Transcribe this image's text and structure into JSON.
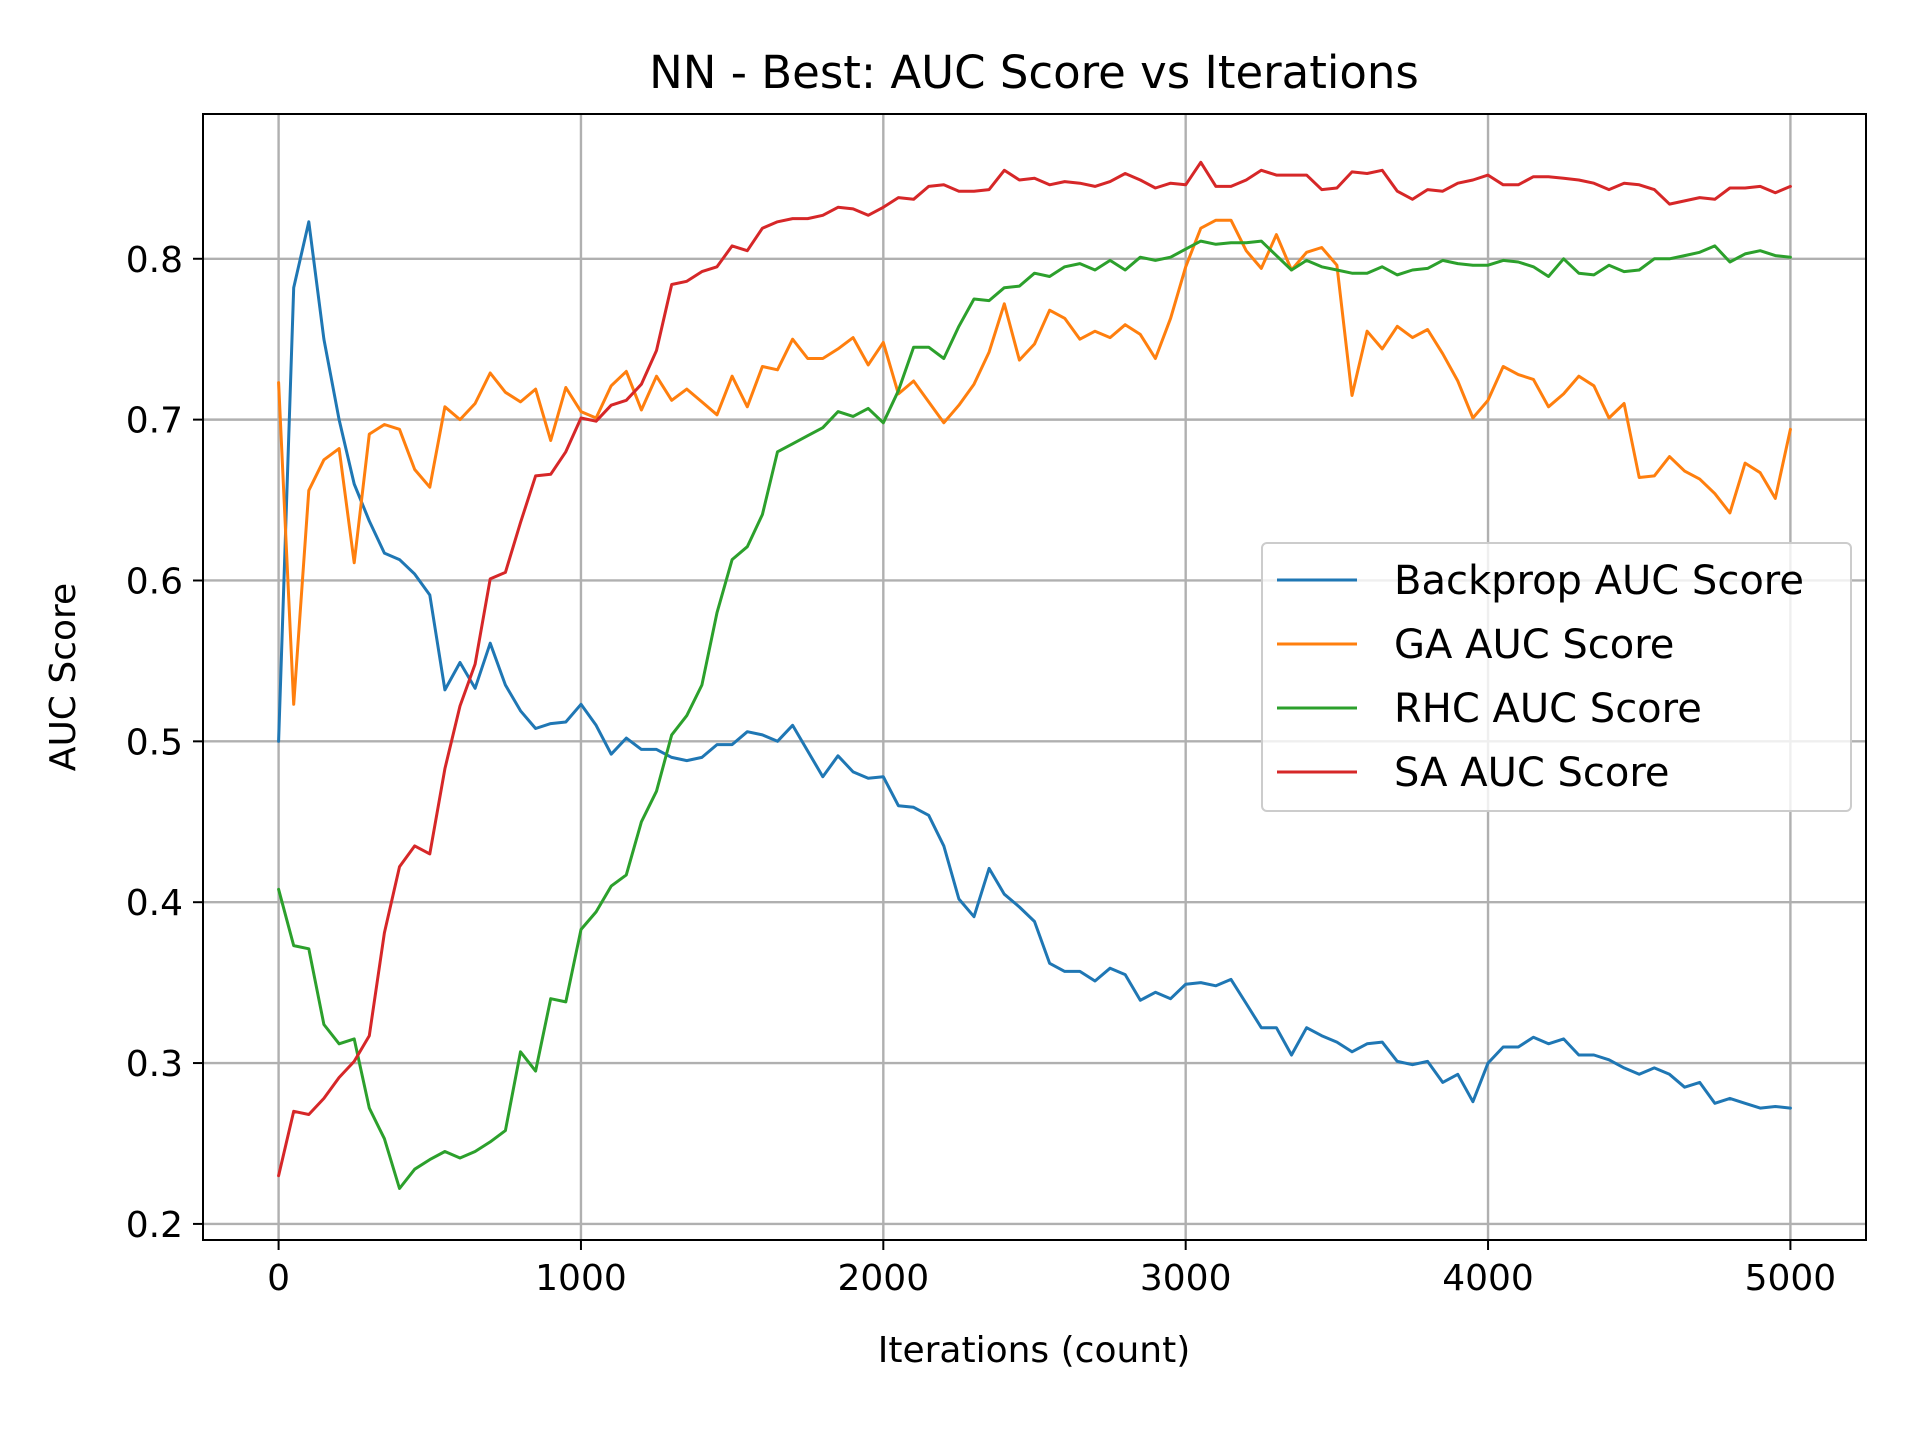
{
  "chart_data": {
    "type": "line",
    "title": "NN - Best: AUC Score vs Iterations",
    "xlabel": "Iterations (count)",
    "ylabel": "AUC Score",
    "xlim": [
      -250,
      5250
    ],
    "ylim": [
      0.19,
      0.89
    ],
    "xticks": [
      0,
      1000,
      2000,
      3000,
      4000,
      5000
    ],
    "xtick_labels": [
      "0",
      "1000",
      "2000",
      "3000",
      "4000",
      "5000"
    ],
    "yticks": [
      0.2,
      0.3,
      0.4,
      0.5,
      0.6,
      0.7,
      0.8
    ],
    "ytick_labels": [
      "0.2",
      "0.3",
      "0.4",
      "0.5",
      "0.6",
      "0.7",
      "0.8"
    ],
    "grid": true,
    "legend_position": "center-right",
    "x": [
      0,
      50,
      100,
      150,
      200,
      250,
      300,
      350,
      400,
      450,
      500,
      550,
      600,
      650,
      700,
      750,
      800,
      850,
      900,
      950,
      1000,
      1050,
      1100,
      1150,
      1200,
      1250,
      1300,
      1350,
      1400,
      1450,
      1500,
      1550,
      1600,
      1650,
      1700,
      1750,
      1800,
      1850,
      1900,
      1950,
      2000,
      2050,
      2100,
      2150,
      2200,
      2250,
      2300,
      2350,
      2400,
      2450,
      2500,
      2550,
      2600,
      2650,
      2700,
      2750,
      2800,
      2850,
      2900,
      2950,
      3000,
      3050,
      3100,
      3150,
      3200,
      3250,
      3300,
      3350,
      3400,
      3450,
      3500,
      3550,
      3600,
      3650,
      3700,
      3750,
      3800,
      3850,
      3900,
      3950,
      4000,
      4050,
      4100,
      4150,
      4200,
      4250,
      4300,
      4350,
      4400,
      4450,
      4500,
      4550,
      4600,
      4650,
      4700,
      4750,
      4800,
      4850,
      4900,
      4950,
      5000
    ],
    "series": [
      {
        "name": "Backprop AUC Score",
        "color": "#1f77b4",
        "values": [
          0.5,
          0.782,
          0.823,
          0.75,
          0.7,
          0.66,
          0.637,
          0.617,
          0.613,
          0.604,
          0.591,
          0.532,
          0.549,
          0.533,
          0.561,
          0.535,
          0.519,
          0.508,
          0.511,
          0.512,
          0.523,
          0.51,
          0.492,
          0.502,
          0.495,
          0.495,
          0.49,
          0.488,
          0.49,
          0.498,
          0.498,
          0.506,
          0.504,
          0.5,
          0.51,
          0.494,
          0.478,
          0.491,
          0.481,
          0.477,
          0.478,
          0.46,
          0.459,
          0.454,
          0.435,
          0.402,
          0.391,
          0.421,
          0.405,
          0.397,
          0.388,
          0.362,
          0.357,
          0.357,
          0.351,
          0.359,
          0.355,
          0.339,
          0.344,
          0.34,
          0.349,
          0.35,
          0.348,
          0.352,
          0.337,
          0.322,
          0.322,
          0.305,
          0.322,
          0.317,
          0.313,
          0.307,
          0.312,
          0.313,
          0.301,
          0.299,
          0.301,
          0.288,
          0.293,
          0.276,
          0.3,
          0.31,
          0.31,
          0.316,
          0.312,
          0.315,
          0.305,
          0.305,
          0.302,
          0.297,
          0.293,
          0.297,
          0.293,
          0.285,
          0.288,
          0.275,
          0.278,
          0.275,
          0.272,
          0.273,
          0.272
        ]
      },
      {
        "name": "GA AUC Score",
        "color": "#ff7f0e",
        "values": [
          0.723,
          0.523,
          0.656,
          0.675,
          0.682,
          0.611,
          0.691,
          0.697,
          0.694,
          0.669,
          0.658,
          0.708,
          0.7,
          0.71,
          0.729,
          0.717,
          0.711,
          0.719,
          0.687,
          0.72,
          0.705,
          0.701,
          0.721,
          0.73,
          0.706,
          0.727,
          0.712,
          0.719,
          0.711,
          0.703,
          0.727,
          0.708,
          0.733,
          0.731,
          0.75,
          0.738,
          0.738,
          0.744,
          0.751,
          0.734,
          0.748,
          0.716,
          0.724,
          0.711,
          0.698,
          0.709,
          0.722,
          0.742,
          0.772,
          0.737,
          0.747,
          0.768,
          0.763,
          0.75,
          0.755,
          0.751,
          0.759,
          0.753,
          0.738,
          0.763,
          0.795,
          0.819,
          0.824,
          0.824,
          0.805,
          0.794,
          0.815,
          0.793,
          0.804,
          0.807,
          0.796,
          0.715,
          0.755,
          0.744,
          0.758,
          0.751,
          0.756,
          0.741,
          0.724,
          0.701,
          0.712,
          0.733,
          0.728,
          0.725,
          0.708,
          0.716,
          0.727,
          0.721,
          0.701,
          0.71,
          0.664,
          0.665,
          0.677,
          0.668,
          0.663,
          0.654,
          0.642,
          0.673,
          0.667,
          0.651,
          0.694
        ]
      },
      {
        "name": "RHC AUC Score",
        "color": "#2ca02c",
        "values": [
          0.408,
          0.373,
          0.371,
          0.324,
          0.312,
          0.315,
          0.272,
          0.253,
          0.222,
          0.234,
          0.24,
          0.245,
          0.241,
          0.245,
          0.251,
          0.258,
          0.307,
          0.295,
          0.34,
          0.338,
          0.383,
          0.394,
          0.41,
          0.417,
          0.45,
          0.469,
          0.504,
          0.516,
          0.535,
          0.58,
          0.613,
          0.621,
          0.641,
          0.68,
          0.685,
          0.69,
          0.695,
          0.705,
          0.702,
          0.707,
          0.698,
          0.718,
          0.745,
          0.745,
          0.738,
          0.758,
          0.775,
          0.774,
          0.782,
          0.783,
          0.791,
          0.789,
          0.795,
          0.797,
          0.793,
          0.799,
          0.793,
          0.801,
          0.799,
          0.801,
          0.806,
          0.811,
          0.809,
          0.81,
          0.81,
          0.811,
          0.802,
          0.793,
          0.799,
          0.795,
          0.793,
          0.791,
          0.791,
          0.795,
          0.79,
          0.793,
          0.794,
          0.799,
          0.797,
          0.796,
          0.796,
          0.799,
          0.798,
          0.795,
          0.789,
          0.8,
          0.791,
          0.79,
          0.796,
          0.792,
          0.793,
          0.8,
          0.8,
          0.802,
          0.804,
          0.808,
          0.798,
          0.803,
          0.805,
          0.802,
          0.801
        ]
      },
      {
        "name": "SA AUC Score",
        "color": "#d62728",
        "values": [
          0.23,
          0.27,
          0.268,
          0.278,
          0.291,
          0.301,
          0.317,
          0.381,
          0.422,
          0.435,
          0.43,
          0.483,
          0.522,
          0.548,
          0.601,
          0.605,
          0.636,
          0.665,
          0.666,
          0.68,
          0.701,
          0.699,
          0.709,
          0.712,
          0.722,
          0.743,
          0.784,
          0.786,
          0.792,
          0.795,
          0.808,
          0.805,
          0.819,
          0.823,
          0.825,
          0.825,
          0.827,
          0.832,
          0.831,
          0.827,
          0.832,
          0.838,
          0.837,
          0.845,
          0.846,
          0.842,
          0.842,
          0.843,
          0.855,
          0.849,
          0.85,
          0.846,
          0.848,
          0.847,
          0.845,
          0.848,
          0.853,
          0.849,
          0.844,
          0.847,
          0.846,
          0.86,
          0.845,
          0.845,
          0.849,
          0.855,
          0.852,
          0.852,
          0.852,
          0.843,
          0.844,
          0.854,
          0.853,
          0.855,
          0.842,
          0.837,
          0.843,
          0.842,
          0.847,
          0.849,
          0.852,
          0.846,
          0.846,
          0.851,
          0.851,
          0.85,
          0.849,
          0.847,
          0.843,
          0.847,
          0.846,
          0.843,
          0.834,
          0.836,
          0.838,
          0.837,
          0.844,
          0.844,
          0.845,
          0.841,
          0.845
        ]
      }
    ]
  }
}
